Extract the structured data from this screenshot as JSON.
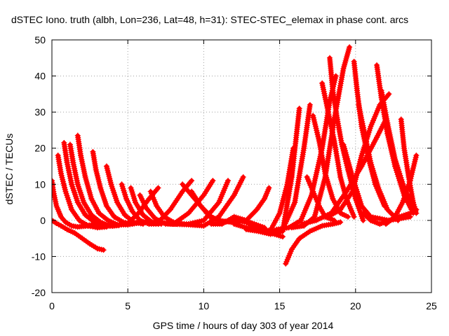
{
  "chart_data": {
    "type": "scatter",
    "title": "dSTEC Iono. truth (albh, Lon=236, Lat=48, h=31): STEC-STEC_elemax in phase cont. arcs",
    "xlabel": "GPS time / hours of day 303 of year 2014",
    "ylabel": "dSTEC  / TECUs",
    "xlim": [
      0,
      25
    ],
    "ylim": [
      -20,
      50
    ],
    "xticks": [
      0,
      5,
      10,
      15,
      20,
      25
    ],
    "yticks": [
      -20,
      -10,
      0,
      10,
      20,
      30,
      40,
      50
    ],
    "grid": true,
    "marker": "+",
    "color": "#ff0000",
    "series": [
      {
        "x": [
          0.0,
          0.3,
          0.6,
          1.0,
          1.5,
          2.0,
          2.5,
          3.0,
          3.4
        ],
        "y": [
          0,
          -0.8,
          -1.5,
          -2.5,
          -3.5,
          -5,
          -6.5,
          -7.8,
          -8.2
        ]
      },
      {
        "x": [
          0.0,
          0.1,
          0.3,
          0.6,
          0.9,
          1.3,
          1.7,
          2.1,
          2.6
        ],
        "y": [
          11,
          8,
          4,
          1,
          -0.5,
          -1.5,
          -1.8,
          -1.6,
          -1.4
        ]
      },
      {
        "x": [
          0.4,
          0.6,
          0.9,
          1.3,
          1.8,
          2.4,
          3.0,
          3.6
        ],
        "y": [
          18,
          13,
          8,
          3,
          0,
          -1.5,
          -2,
          -1.8
        ]
      },
      {
        "x": [
          0.8,
          1.0,
          1.3,
          1.7,
          2.2,
          2.8,
          3.4,
          4.0
        ],
        "y": [
          21.5,
          16,
          10,
          5,
          1.5,
          -0.5,
          -1.5,
          -1.5
        ]
      },
      {
        "x": [
          1.2,
          1.4,
          1.7,
          2.1,
          2.6,
          3.2,
          3.8,
          4.4
        ],
        "y": [
          21,
          16,
          10,
          5,
          1.5,
          -0.5,
          -1.5,
          -1.4
        ]
      },
      {
        "x": [
          1.7,
          1.9,
          2.2,
          2.6,
          3.1,
          3.7,
          4.3,
          5.0
        ],
        "y": [
          23.5,
          18,
          12,
          6,
          2,
          0,
          -1.2,
          -1.2
        ]
      },
      {
        "x": [
          2.7,
          2.9,
          3.2,
          3.6,
          4.1,
          4.7,
          5.3
        ],
        "y": [
          19,
          14,
          9,
          4,
          1,
          -0.5,
          -1
        ]
      },
      {
        "x": [
          3.6,
          3.9,
          4.3,
          4.8,
          5.4,
          6.0
        ],
        "y": [
          15,
          10,
          5,
          1.5,
          -0.5,
          -1
        ]
      },
      {
        "x": [
          4.6,
          4.9,
          5.3,
          5.8,
          6.4,
          7.0
        ],
        "y": [
          10,
          6,
          2.5,
          0,
          -1,
          -1
        ]
      },
      {
        "x": [
          5.2,
          5.5,
          6.0,
          6.6,
          7.2
        ],
        "y": [
          9,
          5,
          1.5,
          -0.5,
          -1
        ]
      },
      {
        "x": [
          5.8,
          6.2,
          6.8,
          7.5,
          8.2
        ],
        "y": [
          7,
          3.5,
          0.5,
          -1,
          -1
        ]
      },
      {
        "x": [
          6.5,
          6.9,
          7.4,
          8.0,
          8.7
        ],
        "y": [
          8,
          4,
          1,
          -0.5,
          -1
        ]
      },
      {
        "x": [
          2.2,
          3.0,
          4.0,
          5.0,
          5.7,
          6.4,
          7.0
        ],
        "y": [
          -1.5,
          -1,
          -1.5,
          -0.8,
          2,
          6,
          9
        ]
      },
      {
        "x": [
          4.0,
          5.0,
          6.0,
          7.0,
          7.8,
          8.6,
          9.2
        ],
        "y": [
          -1.5,
          -1,
          -0.5,
          -0.5,
          3,
          8,
          11
        ]
      },
      {
        "x": [
          5.0,
          6.0,
          7.0,
          8.0,
          9.0,
          10.0,
          10.6
        ],
        "y": [
          -1.2,
          -0.5,
          -0.5,
          -1,
          2,
          7,
          11
        ]
      },
      {
        "x": [
          7.0,
          8.0,
          9.0,
          10.0,
          11.0,
          11.6
        ],
        "y": [
          -0.5,
          -1,
          -1,
          0,
          5,
          11
        ]
      },
      {
        "x": [
          8.0,
          9.0,
          10.0,
          11.0,
          12.0,
          12.6
        ],
        "y": [
          -1,
          -1.2,
          -1.5,
          1,
          7,
          12
        ]
      },
      {
        "x": [
          8.6,
          9.2,
          9.8,
          10.4,
          11.0,
          11.8,
          12.6,
          13.2,
          14.0
        ],
        "y": [
          10,
          7,
          4,
          1,
          0,
          -0.5,
          0,
          -0.8,
          -2
        ]
      },
      {
        "x": [
          9.2,
          9.8,
          10.5,
          11.2,
          12.0,
          12.8,
          13.6,
          14.4,
          15.2
        ],
        "y": [
          8,
          4,
          1,
          -0.5,
          0,
          -0.5,
          -2.5,
          -3.5,
          -4.5
        ]
      },
      {
        "x": [
          10.5,
          11.2,
          12.0,
          12.8,
          13.5,
          14.0,
          14.3
        ],
        "y": [
          -1,
          -1,
          1,
          0,
          3,
          6,
          9
        ]
      },
      {
        "x": [
          12.0,
          12.8,
          13.6,
          14.3,
          15.0,
          15.5,
          15.9
        ],
        "y": [
          -1,
          -2,
          -3,
          -3.5,
          2,
          10,
          20
        ]
      },
      {
        "x": [
          12.8,
          13.6,
          14.4,
          15.2,
          15.8,
          16.3
        ],
        "y": [
          -2.5,
          -3,
          -3.8,
          -3,
          12,
          31
        ]
      },
      {
        "x": [
          13.6,
          14.4,
          15.2,
          16.0,
          16.6,
          17.0
        ],
        "y": [
          -2,
          -3,
          -2.5,
          5,
          20,
          32
        ]
      },
      {
        "x": [
          15.4,
          15.8,
          16.3,
          17.0,
          17.8,
          18.5,
          19.0
        ],
        "y": [
          -12,
          -8,
          -5,
          -3,
          -1.5,
          -1,
          -0.5
        ]
      },
      {
        "x": [
          14.8,
          15.6,
          16.4,
          17.1,
          17.8,
          18.3,
          18.7
        ],
        "y": [
          -2.5,
          -2,
          0,
          7,
          20,
          33,
          40
        ]
      },
      {
        "x": [
          15.8,
          16.6,
          17.3,
          18.0,
          18.6,
          19.2,
          19.6
        ],
        "y": [
          -2,
          -1.5,
          1,
          12,
          28,
          42,
          48
        ]
      },
      {
        "x": [
          16.8,
          17.2,
          17.6,
          18.0,
          18.6
        ],
        "y": [
          12,
          8,
          4,
          1,
          0
        ]
      },
      {
        "x": [
          17.2,
          17.6,
          18.0,
          18.5,
          19.0,
          19.5
        ],
        "y": [
          29,
          22,
          13,
          6,
          2,
          1
        ]
      },
      {
        "x": [
          17.8,
          18.2,
          18.6,
          19.0,
          19.4,
          19.9
        ],
        "y": [
          38,
          30,
          22,
          12,
          6,
          1
        ]
      },
      {
        "x": [
          18.3,
          18.5,
          18.8,
          19.1,
          19.5,
          20.0,
          20.5
        ],
        "y": [
          45,
          36,
          28,
          21,
          14,
          6,
          0
        ]
      },
      {
        "x": [
          19.9,
          20.1,
          20.4,
          20.8,
          21.3,
          21.9
        ],
        "y": [
          44,
          36,
          26,
          18,
          10,
          4
        ]
      },
      {
        "x": [
          20.2,
          20.6,
          21.0,
          21.5,
          22.1,
          22.8
        ],
        "y": [
          32,
          24,
          16,
          9,
          3,
          0
        ]
      },
      {
        "x": [
          20.5,
          21.0,
          21.6,
          22.2,
          22.9,
          23.6,
          24.0
        ],
        "y": [
          2,
          0,
          -1,
          0,
          1,
          2,
          3
        ]
      },
      {
        "x": [
          21.4,
          21.7,
          22.1,
          22.6,
          23.2,
          23.8
        ],
        "y": [
          43,
          34,
          24,
          15,
          7,
          2
        ]
      },
      {
        "x": [
          21.7,
          22.1,
          22.6,
          23.2,
          23.9
        ],
        "y": [
          36,
          27,
          17,
          9,
          3
        ]
      },
      {
        "x": [
          23.0,
          23.2,
          23.5,
          23.8,
          24.0
        ],
        "y": [
          28,
          20,
          12,
          5,
          2
        ]
      },
      {
        "x": [
          22.0,
          22.6,
          23.1,
          23.6,
          24.0
        ],
        "y": [
          -1,
          1,
          5,
          11,
          18
        ]
      },
      {
        "x": [
          19.2,
          19.8,
          20.4,
          21.0,
          21.6,
          22.2,
          22.9,
          23.6
        ],
        "y": [
          21,
          12,
          4,
          1,
          0.5,
          0,
          0.5,
          1
        ]
      },
      {
        "x": [
          18.2,
          19.0,
          19.8,
          20.4,
          21.0,
          21.6,
          22.2
        ],
        "y": [
          1,
          3,
          8,
          18,
          26,
          32,
          35
        ]
      },
      {
        "x": [
          16.5,
          17.4,
          18.4,
          19.4,
          20.4,
          21.4,
          22.0
        ],
        "y": [
          -1,
          0,
          2,
          8,
          15,
          23,
          28
        ]
      }
    ]
  }
}
